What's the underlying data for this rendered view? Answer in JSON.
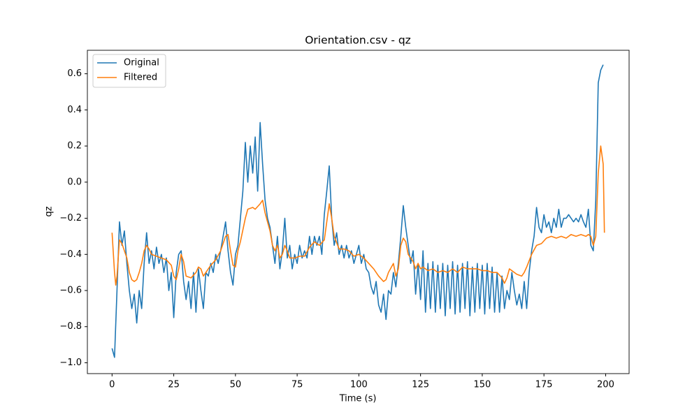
{
  "chart_data": {
    "type": "line",
    "title": "Orientation.csv - qz",
    "x_label": "Time (s)",
    "y_label": "qz",
    "xlim": [
      -10,
      209.5
    ],
    "ylim": [
      -1.06,
      0.73
    ],
    "xticks": [
      0,
      25,
      50,
      75,
      100,
      125,
      150,
      175,
      200
    ],
    "yticks": [
      {
        "value": -1.0,
        "label": "−1.0"
      },
      {
        "value": -0.8,
        "label": "−0.8"
      },
      {
        "value": -0.6,
        "label": "−0.6"
      },
      {
        "value": -0.4,
        "label": "−0.4"
      },
      {
        "value": -0.2,
        "label": "−0.2"
      },
      {
        "value": 0,
        "label": "0.0"
      },
      0.2,
      0.4,
      0.6
    ],
    "legend": "upper left",
    "grid": false,
    "series": [
      {
        "name": "Original",
        "color": "#1f77b4",
        "x": [
          0,
          1,
          2,
          3,
          4,
          5,
          6,
          7,
          8,
          9,
          10,
          11,
          12,
          13,
          14,
          15,
          16,
          17,
          18,
          19,
          20,
          21,
          22,
          23,
          24,
          25,
          26,
          27,
          28,
          29,
          30,
          31,
          32,
          33,
          34,
          35,
          36,
          37,
          38,
          39,
          40,
          41,
          42,
          43,
          44,
          45,
          46,
          47,
          48,
          49,
          50,
          51,
          52,
          53,
          54,
          55,
          56,
          57,
          58,
          59,
          60,
          61,
          62,
          63,
          64,
          65,
          66,
          67,
          68,
          69,
          70,
          71,
          72,
          73,
          74,
          75,
          76,
          77,
          78,
          79,
          80,
          81,
          82,
          83,
          84,
          85,
          86,
          87,
          88,
          89,
          90,
          91,
          92,
          93,
          94,
          95,
          96,
          97,
          98,
          99,
          100,
          101,
          102,
          103,
          104,
          105,
          106,
          107,
          108,
          109,
          110,
          111,
          112,
          113,
          114,
          115,
          116,
          117,
          118,
          119,
          120,
          121,
          122,
          123,
          124,
          125,
          126,
          127,
          128,
          129,
          130,
          131,
          132,
          133,
          134,
          135,
          136,
          137,
          138,
          139,
          140,
          141,
          142,
          143,
          144,
          145,
          146,
          147,
          148,
          149,
          150,
          151,
          152,
          153,
          154,
          155,
          156,
          157,
          158,
          159,
          160,
          161,
          162,
          163,
          164,
          165,
          166,
          167,
          168,
          169,
          170,
          171,
          172,
          173,
          174,
          175,
          176,
          177,
          178,
          179,
          180,
          181,
          182,
          183,
          184,
          185,
          186,
          187,
          188,
          189,
          190,
          191,
          192,
          193,
          194,
          195,
          196,
          197,
          198,
          199
        ],
        "values": [
          -0.92,
          -0.97,
          -0.6,
          -0.22,
          -0.35,
          -0.27,
          -0.45,
          -0.6,
          -0.7,
          -0.62,
          -0.78,
          -0.6,
          -0.7,
          -0.45,
          -0.28,
          -0.45,
          -0.38,
          -0.48,
          -0.36,
          -0.45,
          -0.4,
          -0.5,
          -0.42,
          -0.6,
          -0.5,
          -0.75,
          -0.5,
          -0.4,
          -0.38,
          -0.55,
          -0.65,
          -0.55,
          -0.7,
          -0.5,
          -0.72,
          -0.48,
          -0.6,
          -0.7,
          -0.5,
          -0.52,
          -0.45,
          -0.5,
          -0.4,
          -0.45,
          -0.38,
          -0.3,
          -0.22,
          -0.38,
          -0.5,
          -0.57,
          -0.4,
          -0.35,
          -0.2,
          -0.05,
          0.22,
          0,
          0.2,
          0.05,
          0.25,
          -0.05,
          0.33,
          0.1,
          -0.1,
          -0.2,
          -0.25,
          -0.35,
          -0.45,
          -0.3,
          -0.48,
          -0.38,
          -0.2,
          -0.42,
          -0.35,
          -0.48,
          -0.4,
          -0.45,
          -0.35,
          -0.42,
          -0.38,
          -0.42,
          -0.3,
          -0.4,
          -0.3,
          -0.35,
          -0.3,
          -0.4,
          -0.18,
          -0.05,
          0.09,
          -0.2,
          -0.35,
          -0.28,
          -0.4,
          -0.35,
          -0.42,
          -0.35,
          -0.42,
          -0.38,
          -0.45,
          -0.4,
          -0.35,
          -0.45,
          -0.4,
          -0.48,
          -0.5,
          -0.58,
          -0.62,
          -0.55,
          -0.68,
          -0.72,
          -0.62,
          -0.76,
          -0.6,
          -0.62,
          -0.5,
          -0.58,
          -0.45,
          -0.3,
          -0.13,
          -0.25,
          -0.35,
          -0.45,
          -0.38,
          -0.62,
          -0.45,
          -0.65,
          -0.38,
          -0.72,
          -0.45,
          -0.7,
          -0.44,
          -0.72,
          -0.46,
          -0.7,
          -0.45,
          -0.74,
          -0.46,
          -0.7,
          -0.44,
          -0.73,
          -0.46,
          -0.72,
          -0.45,
          -0.7,
          -0.44,
          -0.74,
          -0.47,
          -0.72,
          -0.45,
          -0.7,
          -0.46,
          -0.73,
          -0.45,
          -0.7,
          -0.47,
          -0.72,
          -0.5,
          -0.72,
          -0.52,
          -0.7,
          -0.6,
          -0.65,
          -0.5,
          -0.6,
          -0.68,
          -0.62,
          -0.7,
          -0.55,
          -0.7,
          -0.5,
          -0.38,
          -0.3,
          -0.14,
          -0.25,
          -0.28,
          -0.18,
          -0.25,
          -0.22,
          -0.28,
          -0.2,
          -0.25,
          -0.15,
          -0.25,
          -0.2,
          -0.2,
          -0.18,
          -0.2,
          -0.22,
          -0.2,
          -0.22,
          -0.18,
          -0.22,
          -0.25,
          -0.15,
          -0.35,
          -0.38,
          -0.1,
          0.55,
          0.62,
          0.65
        ]
      },
      {
        "name": "Filtered",
        "color": "#ff7f0e",
        "x": [
          0,
          1,
          1.5,
          2,
          3,
          4,
          5,
          6,
          7,
          8,
          9,
          10,
          11,
          12,
          13,
          14,
          15,
          16,
          18,
          20,
          22,
          24,
          25,
          26,
          27,
          28,
          29,
          30,
          32,
          34,
          35,
          36,
          37,
          38,
          40,
          42,
          44,
          46,
          47,
          48,
          49,
          50,
          51,
          52,
          54,
          55,
          57,
          58,
          60,
          61,
          62,
          63,
          64,
          65,
          66,
          67,
          68,
          69,
          70,
          71,
          72,
          74,
          76,
          78,
          80,
          82,
          84,
          86,
          87,
          88,
          89,
          90,
          92,
          94,
          96,
          98,
          100,
          102,
          104,
          106,
          108,
          110,
          111,
          112,
          114,
          115,
          116,
          117,
          118,
          119,
          120,
          122,
          123,
          124,
          125,
          126,
          128,
          130,
          132,
          134,
          136,
          138,
          140,
          142,
          144,
          146,
          148,
          150,
          152,
          154,
          156,
          158,
          159,
          160,
          161,
          162,
          164,
          166,
          167,
          168,
          170,
          172,
          174,
          176,
          178,
          180,
          182,
          184,
          186,
          188,
          190,
          192,
          193,
          194,
          195,
          196,
          197,
          198,
          199,
          199.5
        ],
        "values": [
          -0.28,
          -0.5,
          -0.57,
          -0.52,
          -0.32,
          -0.34,
          -0.38,
          -0.42,
          -0.5,
          -0.54,
          -0.55,
          -0.54,
          -0.5,
          -0.45,
          -0.38,
          -0.35,
          -0.37,
          -0.4,
          -0.41,
          -0.42,
          -0.43,
          -0.46,
          -0.52,
          -0.54,
          -0.48,
          -0.4,
          -0.44,
          -0.52,
          -0.53,
          -0.5,
          -0.47,
          -0.48,
          -0.52,
          -0.5,
          -0.46,
          -0.43,
          -0.38,
          -0.3,
          -0.29,
          -0.38,
          -0.46,
          -0.47,
          -0.38,
          -0.33,
          -0.2,
          -0.15,
          -0.14,
          -0.15,
          -0.12,
          -0.1,
          -0.17,
          -0.22,
          -0.27,
          -0.35,
          -0.38,
          -0.35,
          -0.42,
          -0.4,
          -0.35,
          -0.38,
          -0.42,
          -0.42,
          -0.41,
          -0.41,
          -0.36,
          -0.33,
          -0.35,
          -0.32,
          -0.22,
          -0.12,
          -0.2,
          -0.3,
          -0.37,
          -0.37,
          -0.38,
          -0.41,
          -0.4,
          -0.42,
          -0.45,
          -0.48,
          -0.52,
          -0.55,
          -0.54,
          -0.5,
          -0.45,
          -0.52,
          -0.48,
          -0.35,
          -0.31,
          -0.33,
          -0.4,
          -0.44,
          -0.48,
          -0.45,
          -0.48,
          -0.47,
          -0.49,
          -0.48,
          -0.5,
          -0.49,
          -0.5,
          -0.48,
          -0.5,
          -0.47,
          -0.48,
          -0.48,
          -0.48,
          -0.49,
          -0.49,
          -0.5,
          -0.5,
          -0.53,
          -0.56,
          -0.53,
          -0.48,
          -0.49,
          -0.51,
          -0.52,
          -0.5,
          -0.47,
          -0.4,
          -0.35,
          -0.34,
          -0.31,
          -0.3,
          -0.31,
          -0.3,
          -0.31,
          -0.29,
          -0.3,
          -0.29,
          -0.3,
          -0.29,
          -0.3,
          -0.35,
          -0.3,
          0.05,
          0.2,
          0.1,
          -0.28
        ]
      }
    ]
  }
}
